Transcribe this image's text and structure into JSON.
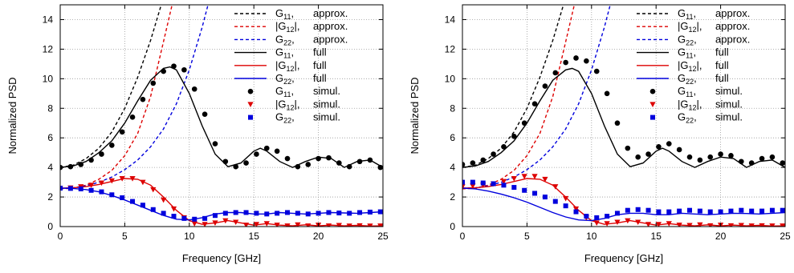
{
  "chart_data": [
    {
      "type": "line",
      "xlabel": "Frequency [GHz]",
      "ylabel": "Normalized PSD",
      "xlim": [
        0,
        25
      ],
      "ylim": [
        0,
        15
      ],
      "xticks": [
        "0",
        "5",
        "10",
        "15",
        "20",
        "25"
      ],
      "yticks": [
        "0",
        "2",
        "4",
        "6",
        "8",
        "10",
        "12",
        "14"
      ],
      "grid": true,
      "legend_position": "top-right",
      "series": [
        {
          "name": "G11, approx.",
          "style": "dashed",
          "color": "#000000",
          "x": [
            0,
            1,
            2,
            3,
            4,
            5,
            6,
            7,
            8,
            9
          ],
          "y": [
            4.0,
            4.15,
            4.6,
            5.3,
            6.4,
            8.0,
            10.1,
            12.6,
            15.5,
            15.5
          ]
        },
        {
          "name": "|G12|, approx.",
          "style": "dashed",
          "color": "#dd0000",
          "x": [
            0,
            1,
            2,
            3,
            4,
            5,
            6,
            7,
            8,
            8.8
          ],
          "y": [
            2.55,
            2.6,
            2.8,
            3.2,
            3.8,
            4.8,
            6.3,
            8.8,
            12.5,
            15.5
          ]
        },
        {
          "name": "G22, approx.",
          "style": "dashed",
          "color": "#0000dd",
          "x": [
            0,
            1,
            2,
            3,
            4,
            5,
            6,
            7,
            8,
            9,
            10,
            11,
            11.6
          ],
          "y": [
            2.6,
            2.62,
            2.75,
            3.0,
            3.35,
            3.85,
            4.5,
            5.4,
            6.6,
            8.3,
            10.6,
            13.5,
            15.5
          ]
        },
        {
          "name": "G11, full",
          "style": "solid",
          "color": "#000000",
          "x": [
            0,
            1,
            2,
            3,
            4,
            5,
            6,
            7,
            8,
            8.5,
            9,
            10,
            11,
            12,
            13,
            14,
            15,
            15.5,
            16,
            17,
            18,
            19,
            20,
            21,
            22,
            23,
            24,
            25
          ],
          "y": [
            4.0,
            4.1,
            4.4,
            5.0,
            5.8,
            7.0,
            8.5,
            9.9,
            10.7,
            10.8,
            10.6,
            9.0,
            6.8,
            4.9,
            4.05,
            4.3,
            5.1,
            5.3,
            5.1,
            4.4,
            4.0,
            4.4,
            4.7,
            4.6,
            4.0,
            4.4,
            4.5,
            4.0
          ]
        },
        {
          "name": "|G12|, full",
          "style": "solid",
          "color": "#dd0000",
          "x": [
            0,
            1,
            2,
            3,
            4,
            5,
            6,
            7,
            8,
            9,
            10,
            11,
            12,
            13,
            14,
            15,
            16,
            17,
            18,
            19,
            20,
            21,
            22,
            23,
            24,
            25
          ],
          "y": [
            2.6,
            2.62,
            2.7,
            2.85,
            3.05,
            3.25,
            3.2,
            2.8,
            2.0,
            1.1,
            0.4,
            0.15,
            0.25,
            0.4,
            0.25,
            0.1,
            0.2,
            0.1,
            0.05,
            0.12,
            0.05,
            0.1,
            0.05,
            0.08,
            0.04,
            0.05
          ]
        },
        {
          "name": "G22, full",
          "style": "solid",
          "color": "#0000dd",
          "x": [
            0,
            1,
            2,
            3,
            4,
            5,
            6,
            7,
            8,
            9,
            10,
            11,
            12,
            13,
            14,
            15,
            16,
            17,
            18,
            19,
            20,
            21,
            22,
            23,
            24,
            25
          ],
          "y": [
            2.6,
            2.58,
            2.5,
            2.35,
            2.1,
            1.8,
            1.45,
            1.1,
            0.75,
            0.5,
            0.45,
            0.6,
            0.85,
            0.95,
            0.95,
            0.85,
            0.85,
            0.95,
            0.9,
            0.85,
            0.9,
            0.95,
            0.92,
            0.9,
            0.95,
            1.0
          ]
        },
        {
          "name": "G11, simul.",
          "style": "markers",
          "marker": "circle",
          "color": "#000000",
          "x": [
            0,
            0.8,
            1.6,
            2.4,
            3.2,
            4.0,
            4.8,
            5.6,
            6.4,
            7.2,
            8.0,
            8.8,
            9.6,
            10.4,
            11.2,
            12.0,
            12.8,
            13.6,
            14.4,
            15.2,
            16.0,
            16.8,
            17.6,
            18.4,
            19.2,
            20.0,
            20.8,
            21.6,
            22.4,
            23.2,
            24.0,
            24.8
          ],
          "y": [
            4.0,
            4.05,
            4.2,
            4.5,
            4.9,
            5.5,
            6.4,
            7.4,
            8.6,
            9.7,
            10.5,
            10.85,
            10.6,
            9.3,
            7.6,
            5.6,
            4.4,
            4.05,
            4.3,
            4.9,
            5.3,
            5.1,
            4.6,
            4.05,
            4.2,
            4.6,
            4.65,
            4.3,
            4.05,
            4.4,
            4.5,
            4.0
          ]
        },
        {
          "name": "|G12|, simul.",
          "style": "markers",
          "marker": "triangle-down",
          "color": "#dd0000",
          "x": [
            0,
            0.8,
            1.6,
            2.4,
            3.2,
            4.0,
            4.8,
            5.6,
            6.4,
            7.2,
            8.0,
            8.8,
            9.6,
            10.4,
            11.2,
            12.0,
            12.8,
            13.6,
            14.4,
            15.2,
            16.0,
            16.8,
            17.6,
            18.4,
            19.2,
            20.0,
            20.8,
            21.6,
            22.4,
            23.2,
            24.0,
            24.8
          ],
          "y": [
            2.6,
            2.62,
            2.7,
            2.8,
            2.95,
            3.1,
            3.25,
            3.25,
            3.0,
            2.5,
            1.8,
            1.2,
            0.6,
            0.2,
            0.15,
            0.25,
            0.4,
            0.3,
            0.1,
            0.15,
            0.2,
            0.1,
            0.05,
            0.12,
            0.05,
            0.1,
            0.05,
            0.08,
            0.04,
            0.06,
            0.04,
            0.05
          ]
        },
        {
          "name": "G22, simul.",
          "style": "markers",
          "marker": "square",
          "color": "#0000dd",
          "x": [
            0,
            0.8,
            1.6,
            2.4,
            3.2,
            4.0,
            4.8,
            5.6,
            6.4,
            7.2,
            8.0,
            8.8,
            9.6,
            10.4,
            11.2,
            12.0,
            12.8,
            13.6,
            14.4,
            15.2,
            16.0,
            16.8,
            17.6,
            18.4,
            19.2,
            20.0,
            20.8,
            21.6,
            22.4,
            23.2,
            24.0,
            24.8
          ],
          "y": [
            2.6,
            2.58,
            2.55,
            2.45,
            2.35,
            2.15,
            1.95,
            1.7,
            1.45,
            1.15,
            0.9,
            0.7,
            0.55,
            0.5,
            0.55,
            0.75,
            0.9,
            0.95,
            0.95,
            0.9,
            0.85,
            0.9,
            0.95,
            0.9,
            0.85,
            0.9,
            0.95,
            0.92,
            0.9,
            0.95,
            0.98,
            1.0
          ]
        }
      ]
    },
    {
      "type": "line",
      "xlabel": "Frequency [GHz]",
      "ylabel": "Normalized PSD",
      "xlim": [
        0,
        25
      ],
      "ylim": [
        0,
        15
      ],
      "xticks": [
        "0",
        "5",
        "10",
        "15",
        "20",
        "25"
      ],
      "yticks": [
        "0",
        "2",
        "4",
        "6",
        "8",
        "10",
        "12",
        "14"
      ],
      "grid": true,
      "legend_position": "top-right",
      "series": [
        {
          "name": "G11, approx.",
          "style": "dashed",
          "color": "#000000",
          "x": [
            0,
            1,
            2,
            3,
            4,
            5,
            6,
            7,
            8,
            9
          ],
          "y": [
            4.0,
            4.15,
            4.6,
            5.3,
            6.4,
            8.0,
            10.1,
            12.6,
            15.5,
            15.5
          ]
        },
        {
          "name": "|G12|, approx.",
          "style": "dashed",
          "color": "#dd0000",
          "x": [
            0,
            1,
            2,
            3,
            4,
            5,
            6,
            7,
            8,
            8.8
          ],
          "y": [
            2.55,
            2.6,
            2.8,
            3.2,
            3.8,
            4.8,
            6.3,
            8.8,
            12.5,
            15.5
          ]
        },
        {
          "name": "G22, approx.",
          "style": "dashed",
          "color": "#0000dd",
          "x": [
            0,
            1,
            2,
            3,
            4,
            5,
            6,
            7,
            8,
            9,
            10,
            11,
            11.6
          ],
          "y": [
            2.6,
            2.62,
            2.75,
            3.0,
            3.35,
            3.85,
            4.5,
            5.4,
            6.6,
            8.3,
            10.6,
            13.5,
            15.5
          ]
        },
        {
          "name": "G11, full",
          "style": "solid",
          "color": "#000000",
          "x": [
            0,
            1,
            2,
            3,
            4,
            5,
            6,
            7,
            8,
            8.5,
            9,
            10,
            11,
            12,
            13,
            14,
            15,
            15.5,
            16,
            17,
            18,
            19,
            20,
            21,
            22,
            23,
            24,
            25
          ],
          "y": [
            4.0,
            4.1,
            4.4,
            5.0,
            5.8,
            7.0,
            8.5,
            9.9,
            10.6,
            10.7,
            10.5,
            9.0,
            6.8,
            4.9,
            4.05,
            4.3,
            5.1,
            5.3,
            5.1,
            4.4,
            4.0,
            4.4,
            4.7,
            4.6,
            4.0,
            4.4,
            4.5,
            4.0
          ]
        },
        {
          "name": "|G12|, full",
          "style": "solid",
          "color": "#dd0000",
          "x": [
            0,
            1,
            2,
            3,
            4,
            5,
            6,
            7,
            8,
            9,
            10,
            11,
            12,
            13,
            14,
            15,
            16,
            17,
            18,
            19,
            20,
            21,
            22,
            23,
            24,
            25
          ],
          "y": [
            2.6,
            2.62,
            2.7,
            2.85,
            3.05,
            3.25,
            3.2,
            2.8,
            2.0,
            1.1,
            0.4,
            0.15,
            0.25,
            0.4,
            0.25,
            0.1,
            0.2,
            0.1,
            0.05,
            0.12,
            0.05,
            0.1,
            0.05,
            0.08,
            0.04,
            0.05
          ]
        },
        {
          "name": "G22, full",
          "style": "solid",
          "color": "#0000dd",
          "x": [
            0,
            1,
            2,
            3,
            4,
            5,
            6,
            7,
            8,
            9,
            10,
            11,
            12,
            13,
            14,
            15,
            16,
            17,
            18,
            19,
            20,
            21,
            22,
            23,
            24,
            25
          ],
          "y": [
            2.6,
            2.55,
            2.4,
            2.2,
            1.95,
            1.65,
            1.3,
            0.95,
            0.65,
            0.45,
            0.4,
            0.55,
            0.8,
            0.9,
            0.9,
            0.8,
            0.8,
            0.9,
            0.85,
            0.8,
            0.85,
            0.9,
            0.88,
            0.85,
            0.9,
            0.95
          ]
        },
        {
          "name": "G11, simul.",
          "style": "markers",
          "marker": "circle",
          "color": "#000000",
          "x": [
            0,
            0.8,
            1.6,
            2.4,
            3.2,
            4.0,
            4.8,
            5.6,
            6.4,
            7.2,
            8.0,
            8.8,
            9.6,
            10.4,
            11.2,
            12.0,
            12.8,
            13.6,
            14.4,
            15.2,
            16.0,
            16.8,
            17.6,
            18.4,
            19.2,
            20.0,
            20.8,
            21.6,
            22.4,
            23.2,
            24.0,
            24.8
          ],
          "y": [
            4.2,
            4.3,
            4.5,
            4.9,
            5.4,
            6.1,
            7.0,
            8.3,
            9.5,
            10.4,
            11.1,
            11.4,
            11.2,
            10.5,
            9.0,
            7.0,
            5.3,
            4.7,
            4.9,
            5.4,
            5.6,
            5.2,
            4.7,
            4.5,
            4.7,
            4.9,
            4.8,
            4.4,
            4.3,
            4.6,
            4.7,
            4.3
          ]
        },
        {
          "name": "|G12|, simul.",
          "style": "markers",
          "marker": "triangle-down",
          "color": "#dd0000",
          "x": [
            0,
            0.8,
            1.6,
            2.4,
            3.2,
            4.0,
            4.8,
            5.6,
            6.4,
            7.2,
            8.0,
            8.8,
            9.6,
            10.4,
            11.2,
            12.0,
            12.8,
            13.6,
            14.4,
            15.2,
            16.0,
            16.8,
            17.6,
            18.4,
            19.2,
            20.0,
            20.8,
            21.6,
            22.4,
            23.2,
            24.0,
            24.8
          ],
          "y": [
            2.7,
            2.75,
            2.8,
            2.9,
            3.05,
            3.25,
            3.4,
            3.4,
            3.2,
            2.7,
            1.9,
            1.2,
            0.6,
            0.25,
            0.2,
            0.3,
            0.4,
            0.3,
            0.15,
            0.15,
            0.2,
            0.1,
            0.08,
            0.12,
            0.06,
            0.1,
            0.06,
            0.08,
            0.05,
            0.06,
            0.05,
            0.05
          ]
        },
        {
          "name": "G22, simul.",
          "style": "markers",
          "marker": "square",
          "color": "#0000dd",
          "x": [
            0,
            0.8,
            1.6,
            2.4,
            3.2,
            4.0,
            4.8,
            5.6,
            6.4,
            7.2,
            8.0,
            8.8,
            9.6,
            10.4,
            11.2,
            12.0,
            12.8,
            13.6,
            14.4,
            15.2,
            16.0,
            16.8,
            17.6,
            18.4,
            19.2,
            20.0,
            20.8,
            21.6,
            22.4,
            23.2,
            24.0,
            24.8
          ],
          "y": [
            3.0,
            3.0,
            2.95,
            2.9,
            2.8,
            2.65,
            2.45,
            2.25,
            2.0,
            1.7,
            1.4,
            1.0,
            0.7,
            0.6,
            0.7,
            0.9,
            1.1,
            1.15,
            1.1,
            1.0,
            1.0,
            1.05,
            1.1,
            1.05,
            1.0,
            1.0,
            1.05,
            1.1,
            1.05,
            1.05,
            1.1,
            1.1
          ]
        }
      ]
    }
  ]
}
